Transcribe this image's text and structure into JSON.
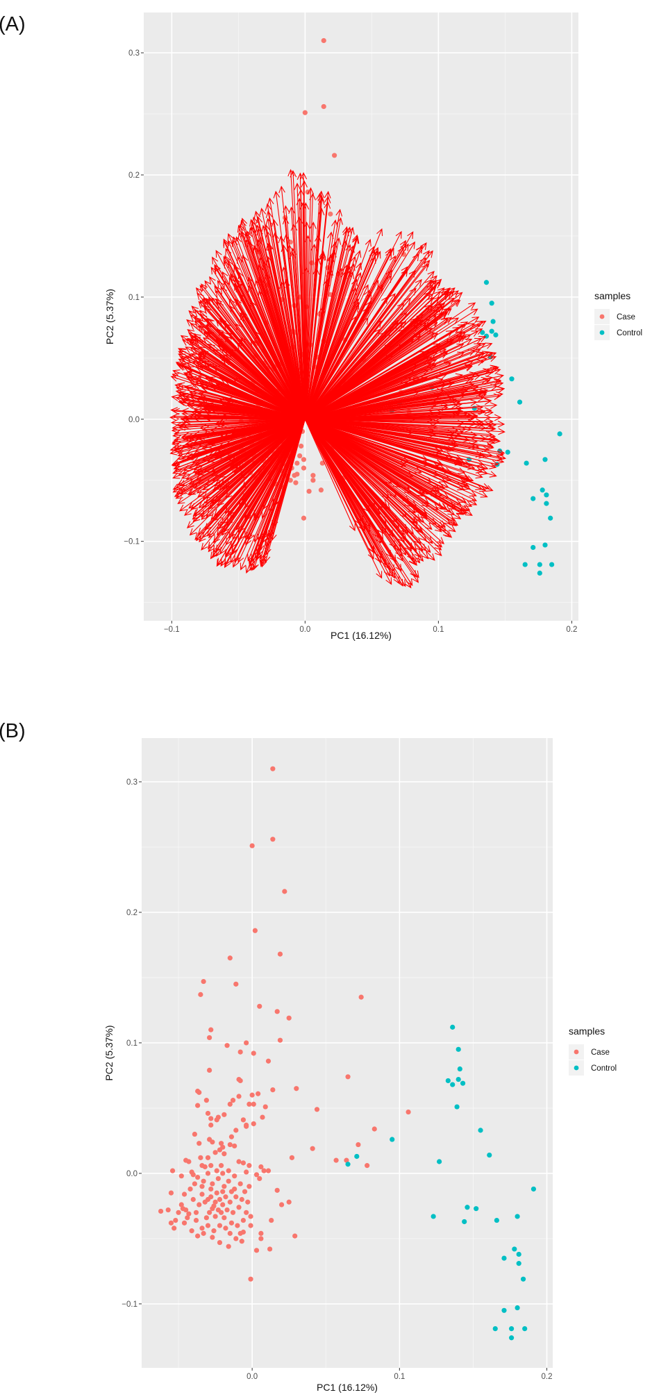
{
  "chart_data": {
    "type": "scatter",
    "xlabel": "PC1 (16.12%)",
    "ylabel": "PC2 (5.37%)",
    "legend": {
      "title": "samples",
      "position": "right"
    },
    "grid": true,
    "panels": [
      {
        "label": "(A)",
        "variant": "biplot with loading arrows",
        "arrow_color": "#FF0000",
        "xlim": [
          -0.121,
          0.205
        ],
        "ylim": [
          -0.165,
          0.333
        ],
        "xticks": [
          {
            "v": -0.1,
            "t": "−0.1"
          },
          {
            "v": 0.0,
            "t": "0.0"
          },
          {
            "v": 0.1,
            "t": "0.1"
          },
          {
            "v": 0.2,
            "t": "0.2"
          }
        ],
        "yticks": [
          {
            "v": -0.1,
            "t": "−0.1"
          },
          {
            "v": 0.0,
            "t": "0.0"
          },
          {
            "v": 0.1,
            "t": "0.1"
          },
          {
            "v": 0.2,
            "t": "0.2"
          },
          {
            "v": 0.3,
            "t": "0.3"
          }
        ]
      },
      {
        "label": "(B)",
        "variant": "scatter",
        "xlim": [
          -0.075,
          0.204
        ],
        "ylim": [
          -0.149,
          0.3335
        ],
        "xticks": [
          {
            "v": 0.0,
            "t": "0.0"
          },
          {
            "v": 0.1,
            "t": "0.1"
          },
          {
            "v": 0.2,
            "t": "0.2"
          }
        ],
        "yticks": [
          {
            "v": -0.1,
            "t": "−0.1"
          },
          {
            "v": 0.0,
            "t": "0.0"
          },
          {
            "v": 0.1,
            "t": "0.1"
          },
          {
            "v": 0.2,
            "t": "0.2"
          },
          {
            "v": 0.3,
            "t": "0.3"
          }
        ]
      }
    ],
    "series": [
      {
        "name": "Case",
        "color": "#F8766D",
        "points": [
          [
            0.014,
            0.31
          ],
          [
            0.014,
            0.256
          ],
          [
            0.0,
            0.251
          ],
          [
            0.022,
            0.216
          ],
          [
            0.002,
            0.186
          ],
          [
            0.019,
            0.168
          ],
          [
            -0.015,
            0.165
          ],
          [
            -0.033,
            0.147
          ],
          [
            -0.011,
            0.145
          ],
          [
            -0.035,
            0.137
          ],
          [
            0.074,
            0.135
          ],
          [
            0.005,
            0.128
          ],
          [
            0.017,
            0.124
          ],
          [
            0.025,
            0.119
          ],
          [
            -0.028,
            0.11
          ],
          [
            -0.029,
            0.104
          ],
          [
            -0.017,
            0.098
          ],
          [
            -0.004,
            0.1
          ],
          [
            0.019,
            0.102
          ],
          [
            -0.008,
            0.093
          ],
          [
            0.001,
            0.092
          ],
          [
            0.011,
            0.086
          ],
          [
            -0.029,
            0.079
          ],
          [
            0.065,
            0.074
          ],
          [
            -0.009,
            0.072
          ],
          [
            -0.008,
            0.071
          ],
          [
            0.03,
            0.065
          ],
          [
            0.014,
            0.064
          ],
          [
            -0.037,
            0.063
          ],
          [
            -0.036,
            0.062
          ],
          [
            -0.031,
            0.056
          ],
          [
            -0.013,
            0.056
          ],
          [
            -0.015,
            0.053
          ],
          [
            -0.009,
            0.059
          ],
          [
            0.0,
            0.06
          ],
          [
            0.004,
            0.061
          ],
          [
            -0.002,
            0.053
          ],
          [
            0.001,
            0.053
          ],
          [
            0.009,
            0.051
          ],
          [
            -0.037,
            0.052
          ],
          [
            0.044,
            0.049
          ],
          [
            0.106,
            0.047
          ],
          [
            -0.03,
            0.046
          ],
          [
            -0.019,
            0.045
          ],
          [
            -0.023,
            0.043
          ],
          [
            -0.024,
            0.041
          ],
          [
            -0.028,
            0.042
          ],
          [
            -0.006,
            0.041
          ],
          [
            0.007,
            0.043
          ],
          [
            -0.028,
            0.037
          ],
          [
            -0.004,
            0.036
          ],
          [
            -0.004,
            0.037
          ],
          [
            0.001,
            0.038
          ],
          [
            -0.011,
            0.033
          ],
          [
            0.083,
            0.034
          ],
          [
            -0.039,
            0.03
          ],
          [
            -0.014,
            0.028
          ],
          [
            -0.036,
            0.023
          ],
          [
            -0.029,
            0.026
          ],
          [
            -0.027,
            0.024
          ],
          [
            -0.021,
            0.023
          ],
          [
            -0.015,
            0.022
          ],
          [
            -0.022,
            0.018
          ],
          [
            -0.019,
            0.015
          ],
          [
            -0.012,
            0.021
          ],
          [
            0.072,
            0.022
          ],
          [
            0.041,
            0.019
          ],
          [
            0.027,
            0.012
          ],
          [
            0.057,
            0.01
          ],
          [
            0.064,
            0.01
          ],
          [
            0.078,
            0.006
          ],
          [
            -0.045,
            0.01
          ],
          [
            -0.043,
            0.009
          ],
          [
            -0.035,
            0.012
          ],
          [
            -0.034,
            0.006
          ],
          [
            -0.032,
            0.005
          ],
          [
            -0.028,
            0.006
          ],
          [
            -0.021,
            0.006
          ],
          [
            -0.009,
            0.009
          ],
          [
            -0.006,
            0.008
          ],
          [
            -0.002,
            0.006
          ],
          [
            0.006,
            0.005
          ],
          [
            0.008,
            0.002
          ],
          [
            0.011,
            0.002
          ],
          [
            -0.054,
            0.002
          ],
          [
            -0.048,
            -0.002
          ],
          [
            -0.041,
            0.001
          ],
          [
            -0.04,
            -0.001
          ],
          [
            -0.037,
            -0.003
          ],
          [
            0.003,
            -0.001
          ],
          [
            0.005,
            -0.004
          ],
          [
            -0.004,
            0.001
          ],
          [
            -0.055,
            -0.015
          ],
          [
            -0.062,
            -0.029
          ],
          [
            -0.057,
            -0.028
          ],
          [
            -0.055,
            -0.038
          ],
          [
            -0.053,
            -0.042
          ],
          [
            0.017,
            -0.013
          ],
          [
            0.025,
            -0.022
          ],
          [
            0.02,
            -0.024
          ],
          [
            -0.001,
            -0.033
          ],
          [
            0.013,
            -0.036
          ],
          [
            0.029,
            -0.048
          ],
          [
            0.006,
            -0.046
          ],
          [
            0.006,
            -0.05
          ],
          [
            0.003,
            -0.059
          ],
          [
            0.012,
            -0.058
          ],
          [
            -0.001,
            -0.081
          ],
          [
            -0.006,
            -0.045
          ],
          [
            -0.008,
            -0.046
          ],
          [
            -0.007,
            -0.052
          ],
          [
            -0.016,
            -0.056
          ],
          [
            -0.022,
            -0.053
          ],
          [
            -0.027,
            -0.049
          ],
          [
            -0.037,
            -0.048
          ],
          [
            -0.046,
            -0.038
          ],
          [
            -0.047,
            -0.027
          ],
          [
            -0.043,
            -0.031
          ],
          [
            -0.03,
            -0.02
          ],
          [
            -0.028,
            -0.018
          ],
          [
            -0.032,
            -0.022
          ],
          [
            -0.026,
            -0.025
          ],
          [
            -0.024,
            -0.015
          ],
          [
            -0.034,
            -0.016
          ],
          [
            -0.036,
            -0.024
          ],
          [
            -0.022,
            -0.02
          ],
          [
            -0.02,
            -0.024
          ],
          [
            -0.018,
            -0.018
          ],
          [
            -0.029,
            -0.03
          ],
          [
            -0.031,
            -0.034
          ],
          [
            -0.025,
            -0.033
          ],
          [
            -0.021,
            -0.03
          ],
          [
            -0.017,
            -0.028
          ],
          [
            -0.015,
            -0.022
          ],
          [
            -0.013,
            -0.03
          ],
          [
            -0.011,
            -0.018
          ],
          [
            -0.009,
            -0.026
          ],
          [
            -0.007,
            -0.02
          ],
          [
            -0.038,
            -0.03
          ],
          [
            -0.04,
            -0.02
          ],
          [
            -0.042,
            -0.012
          ],
          [
            -0.039,
            -0.008
          ],
          [
            -0.033,
            -0.006
          ],
          [
            -0.027,
            -0.008
          ],
          [
            -0.023,
            -0.004
          ],
          [
            -0.019,
            -0.01
          ],
          [
            -0.016,
            -0.006
          ],
          [
            -0.012,
            -0.012
          ],
          [
            -0.008,
            -0.008
          ],
          [
            -0.005,
            -0.014
          ],
          [
            -0.003,
            -0.022
          ],
          [
            -0.004,
            -0.03
          ],
          [
            -0.006,
            -0.036
          ],
          [
            -0.01,
            -0.04
          ],
          [
            -0.014,
            -0.038
          ],
          [
            -0.018,
            -0.042
          ],
          [
            -0.022,
            -0.04
          ],
          [
            -0.026,
            -0.044
          ],
          [
            -0.03,
            -0.04
          ],
          [
            -0.034,
            -0.042
          ],
          [
            -0.038,
            -0.036
          ],
          [
            -0.044,
            -0.034
          ],
          [
            -0.048,
            -0.024
          ],
          [
            -0.046,
            -0.016
          ],
          [
            -0.05,
            -0.03
          ],
          [
            -0.052,
            -0.036
          ],
          [
            -0.024,
            0.002
          ],
          [
            -0.02,
            0.0
          ],
          [
            -0.016,
            0.002
          ],
          [
            -0.012,
            -0.002
          ],
          [
            -0.03,
            0.0
          ],
          [
            -0.034,
            -0.01
          ],
          [
            -0.028,
            -0.012
          ],
          [
            -0.02,
            -0.014
          ],
          [
            -0.014,
            -0.014
          ],
          [
            -0.025,
            -0.022
          ],
          [
            -0.027,
            -0.027
          ],
          [
            -0.023,
            -0.028
          ],
          [
            -0.019,
            -0.034
          ],
          [
            -0.015,
            -0.046
          ],
          [
            -0.011,
            -0.05
          ],
          [
            -0.033,
            -0.046
          ],
          [
            -0.041,
            -0.044
          ],
          [
            -0.045,
            -0.028
          ],
          [
            -0.002,
            -0.01
          ],
          [
            -0.001,
            -0.04
          ],
          [
            -0.03,
            0.012
          ],
          [
            -0.025,
            0.016
          ],
          [
            -0.02,
            0.02
          ]
        ]
      },
      {
        "name": "Control",
        "color": "#00BFC4",
        "points": [
          [
            0.136,
            0.112
          ],
          [
            0.14,
            0.095
          ],
          [
            0.141,
            0.08
          ],
          [
            0.133,
            0.071
          ],
          [
            0.14,
            0.072
          ],
          [
            0.136,
            0.068
          ],
          [
            0.143,
            0.069
          ],
          [
            0.139,
            0.051
          ],
          [
            0.155,
            0.033
          ],
          [
            0.161,
            0.014
          ],
          [
            0.095,
            0.026
          ],
          [
            0.071,
            0.013
          ],
          [
            0.065,
            0.007
          ],
          [
            0.127,
            0.009
          ],
          [
            0.191,
            -0.012
          ],
          [
            0.146,
            -0.026
          ],
          [
            0.152,
            -0.027
          ],
          [
            0.123,
            -0.033
          ],
          [
            0.144,
            -0.037
          ],
          [
            0.166,
            -0.036
          ],
          [
            0.18,
            -0.033
          ],
          [
            0.178,
            -0.058
          ],
          [
            0.181,
            -0.062
          ],
          [
            0.171,
            -0.065
          ],
          [
            0.181,
            -0.069
          ],
          [
            0.184,
            -0.081
          ],
          [
            0.18,
            -0.103
          ],
          [
            0.171,
            -0.105
          ],
          [
            0.165,
            -0.119
          ],
          [
            0.176,
            -0.119
          ],
          [
            0.185,
            -0.119
          ],
          [
            0.176,
            -0.126
          ]
        ]
      }
    ]
  }
}
